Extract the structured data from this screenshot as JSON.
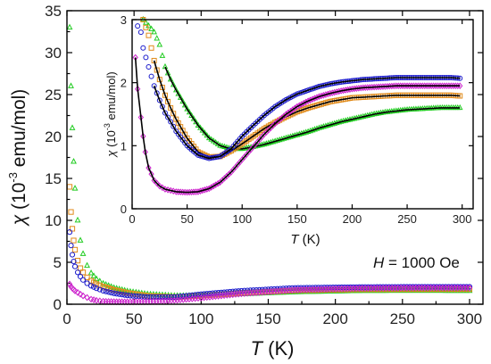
{
  "chart_data": [
    {
      "type": "scatter",
      "panel": "main",
      "xlabel": {
        "symbol": "T",
        "unit": " (K)"
      },
      "ylabel": {
        "symbol": "χ",
        "prefix": " (10",
        "exponent": "-3",
        "suffix": " emu/mol)"
      },
      "xlim": [
        0,
        310
      ],
      "ylim": [
        0,
        35
      ],
      "xticks": [
        0,
        50,
        100,
        150,
        200,
        250,
        300
      ],
      "yticks": [
        0,
        5,
        10,
        15,
        20,
        25,
        30,
        35
      ],
      "annotation": {
        "symbol": "H",
        "text": " = 1000 Oe"
      },
      "series": [
        {
          "color": "#22cc22",
          "marker": "triangle",
          "x": [
            2,
            3,
            4,
            5,
            6,
            8,
            10,
            12,
            15,
            18,
            22,
            27,
            35,
            45,
            60,
            80,
            100,
            130,
            170,
            220,
            260,
            300
          ],
          "y": [
            33.0,
            26.0,
            21.0,
            17.0,
            13.8,
            10.0,
            7.6,
            6.0,
            4.6,
            3.7,
            3.0,
            2.45,
            1.95,
            1.55,
            1.2,
            1.0,
            1.0,
            1.2,
            1.45,
            1.6,
            1.62,
            1.6
          ]
        },
        {
          "color": "#e08a1a",
          "marker": "square",
          "x": [
            2,
            3,
            4,
            5,
            6,
            8,
            10,
            12,
            15,
            18,
            22,
            27,
            35,
            45,
            60,
            80,
            100,
            130,
            170,
            220,
            260,
            300
          ],
          "y": [
            14.0,
            11.0,
            9.0,
            7.6,
            6.5,
            5.2,
            4.3,
            3.8,
            3.2,
            2.8,
            2.4,
            2.1,
            1.7,
            1.35,
            1.0,
            0.85,
            1.0,
            1.35,
            1.65,
            1.78,
            1.8,
            1.8
          ]
        },
        {
          "color": "#1a1acc",
          "marker": "circle",
          "x": [
            2,
            3,
            4,
            5,
            6,
            8,
            10,
            12,
            15,
            18,
            22,
            27,
            35,
            45,
            60,
            80,
            100,
            130,
            170,
            220,
            260,
            300
          ],
          "y": [
            8.6,
            7.0,
            5.9,
            5.1,
            4.5,
            3.8,
            3.3,
            2.9,
            2.5,
            2.2,
            1.9,
            1.6,
            1.3,
            1.05,
            0.85,
            0.85,
            1.2,
            1.6,
            1.95,
            2.05,
            2.08,
            2.08
          ]
        },
        {
          "color": "#cc22cc",
          "marker": "diamond",
          "x": [
            2,
            3,
            4,
            5,
            6,
            8,
            10,
            12,
            15,
            18,
            22,
            27,
            35,
            45,
            60,
            80,
            100,
            130,
            170,
            220,
            260,
            300
          ],
          "y": [
            2.4,
            2.1,
            1.9,
            1.75,
            1.6,
            1.4,
            1.2,
            1.0,
            0.8,
            0.6,
            0.45,
            0.35,
            0.3,
            0.28,
            0.3,
            0.45,
            0.75,
            1.25,
            1.7,
            1.9,
            1.95,
            1.95
          ]
        }
      ]
    },
    {
      "type": "scatter",
      "panel": "inset",
      "xlabel": {
        "symbol": "T",
        "unit": " (K)"
      },
      "ylabel": {
        "symbol": "χ",
        "prefix": " (10",
        "exponent": "-3",
        "suffix": " emu/mol)"
      },
      "xlim": [
        0,
        310
      ],
      "ylim": [
        0,
        3
      ],
      "xticks": [
        0,
        50,
        100,
        150,
        200,
        250,
        300
      ],
      "yticks": [
        0,
        1,
        2,
        3
      ],
      "series": [
        {
          "color": "#22cc22",
          "marker": "triangle",
          "fit_start": 30,
          "x": [
            10,
            15,
            20,
            25,
            30,
            35,
            40,
            50,
            60,
            70,
            80,
            90,
            100,
            110,
            120,
            130,
            140,
            150,
            160,
            170,
            180,
            190,
            200,
            210,
            220,
            230,
            240,
            250,
            260,
            270,
            280,
            290,
            298
          ],
          "y": [
            3.0,
            2.9,
            2.8,
            2.6,
            2.25,
            2.05,
            1.88,
            1.58,
            1.32,
            1.12,
            1.0,
            0.95,
            0.95,
            0.98,
            1.02,
            1.07,
            1.12,
            1.17,
            1.22,
            1.28,
            1.33,
            1.38,
            1.42,
            1.46,
            1.5,
            1.53,
            1.55,
            1.57,
            1.58,
            1.59,
            1.6,
            1.6,
            1.6
          ]
        },
        {
          "color": "#e08a1a",
          "marker": "square",
          "fit_start": 20,
          "x": [
            10,
            15,
            20,
            25,
            30,
            35,
            40,
            50,
            60,
            70,
            80,
            90,
            100,
            110,
            120,
            130,
            140,
            150,
            160,
            170,
            180,
            190,
            200,
            210,
            220,
            230,
            240,
            250,
            260,
            270,
            280,
            290,
            298
          ],
          "y": [
            3.0,
            2.75,
            2.35,
            2.05,
            1.8,
            1.6,
            1.42,
            1.12,
            0.9,
            0.82,
            0.83,
            0.92,
            1.03,
            1.15,
            1.27,
            1.37,
            1.46,
            1.54,
            1.6,
            1.65,
            1.7,
            1.73,
            1.76,
            1.77,
            1.78,
            1.79,
            1.8,
            1.8,
            1.8,
            1.8,
            1.8,
            1.8,
            1.79
          ]
        },
        {
          "color": "#1a1acc",
          "marker": "circle",
          "fit_start": 20,
          "x": [
            5,
            8,
            10,
            15,
            20,
            25,
            30,
            35,
            40,
            50,
            60,
            70,
            80,
            90,
            100,
            110,
            120,
            130,
            140,
            150,
            160,
            170,
            180,
            190,
            200,
            210,
            220,
            230,
            240,
            250,
            260,
            270,
            280,
            290,
            298
          ],
          "y": [
            2.9,
            2.8,
            2.55,
            2.25,
            1.95,
            1.72,
            1.52,
            1.38,
            1.23,
            1.0,
            0.85,
            0.8,
            0.83,
            0.95,
            1.15,
            1.32,
            1.48,
            1.62,
            1.73,
            1.82,
            1.88,
            1.94,
            1.98,
            2.01,
            2.03,
            2.05,
            2.06,
            2.07,
            2.08,
            2.08,
            2.08,
            2.08,
            2.08,
            2.08,
            2.07
          ]
        },
        {
          "color": "#cc22cc",
          "marker": "diamond",
          "fit_start": 3,
          "x": [
            3,
            5,
            8,
            10,
            12,
            15,
            20,
            25,
            30,
            35,
            40,
            50,
            60,
            70,
            80,
            90,
            100,
            110,
            120,
            130,
            140,
            150,
            160,
            170,
            180,
            190,
            200,
            210,
            220,
            230,
            240,
            250,
            260,
            270,
            280,
            290,
            298
          ],
          "y": [
            2.4,
            1.9,
            1.45,
            1.15,
            0.9,
            0.65,
            0.45,
            0.36,
            0.31,
            0.29,
            0.27,
            0.26,
            0.27,
            0.32,
            0.42,
            0.58,
            0.78,
            0.98,
            1.18,
            1.35,
            1.5,
            1.62,
            1.71,
            1.78,
            1.83,
            1.87,
            1.9,
            1.92,
            1.93,
            1.94,
            1.95,
            1.95,
            1.95,
            1.95,
            1.95,
            1.95,
            1.95
          ]
        }
      ]
    }
  ]
}
